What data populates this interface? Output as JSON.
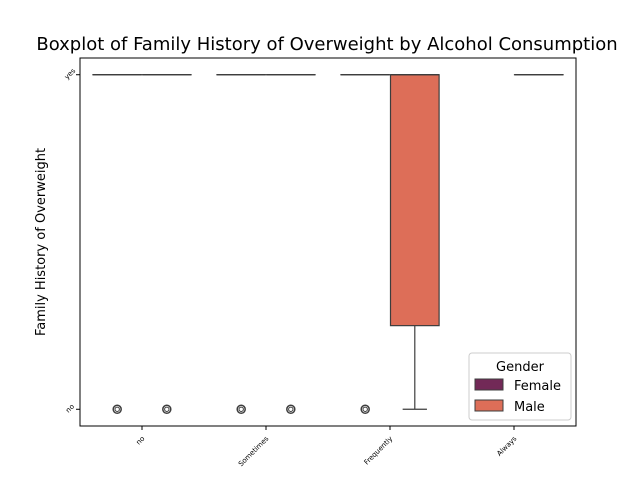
{
  "chart_data": {
    "type": "box",
    "title": "Boxplot of Family History of Overweight by Alcohol Consumption",
    "xlabel": "",
    "ylabel": "Family History of Overweight",
    "categories": [
      "no",
      "Sometimes",
      "Frequently",
      "Always"
    ],
    "y_categories": [
      "no",
      "yes"
    ],
    "y_values": {
      "no": 0,
      "yes": 1
    },
    "ylim": [
      -0.05,
      1.05
    ],
    "grid": false,
    "legend": {
      "title": "Gender",
      "placement": "lower-right",
      "entries": [
        "Female",
        "Male"
      ]
    },
    "series": [
      {
        "name": "Female",
        "color": "#722957",
        "boxes": [
          {
            "category": "no",
            "whisker_low": 1,
            "q1": 1,
            "median": 1,
            "q3": 1,
            "whisker_high": 1,
            "outliers": [
              0
            ]
          },
          {
            "category": "Sometimes",
            "whisker_low": 1,
            "q1": 1,
            "median": 1,
            "q3": 1,
            "whisker_high": 1,
            "outliers": [
              0
            ]
          },
          {
            "category": "Frequently",
            "whisker_low": 1,
            "q1": 1,
            "median": 1,
            "q3": 1,
            "whisker_high": 1,
            "outliers": [
              0
            ]
          },
          null
        ]
      },
      {
        "name": "Male",
        "color": "#dd6e58",
        "boxes": [
          {
            "category": "no",
            "whisker_low": 1,
            "q1": 1,
            "median": 1,
            "q3": 1,
            "whisker_high": 1,
            "outliers": [
              0
            ]
          },
          {
            "category": "Sometimes",
            "whisker_low": 1,
            "q1": 1,
            "median": 1,
            "q3": 1,
            "whisker_high": 1,
            "outliers": [
              0
            ]
          },
          {
            "category": "Frequently",
            "whisker_low": 0,
            "q1": 0.25,
            "median": 1,
            "q3": 1,
            "whisker_high": 1,
            "outliers": []
          },
          {
            "category": "Always",
            "whisker_low": 1,
            "q1": 1,
            "median": 1,
            "q3": 1,
            "whisker_high": 1,
            "outliers": []
          }
        ]
      }
    ]
  }
}
